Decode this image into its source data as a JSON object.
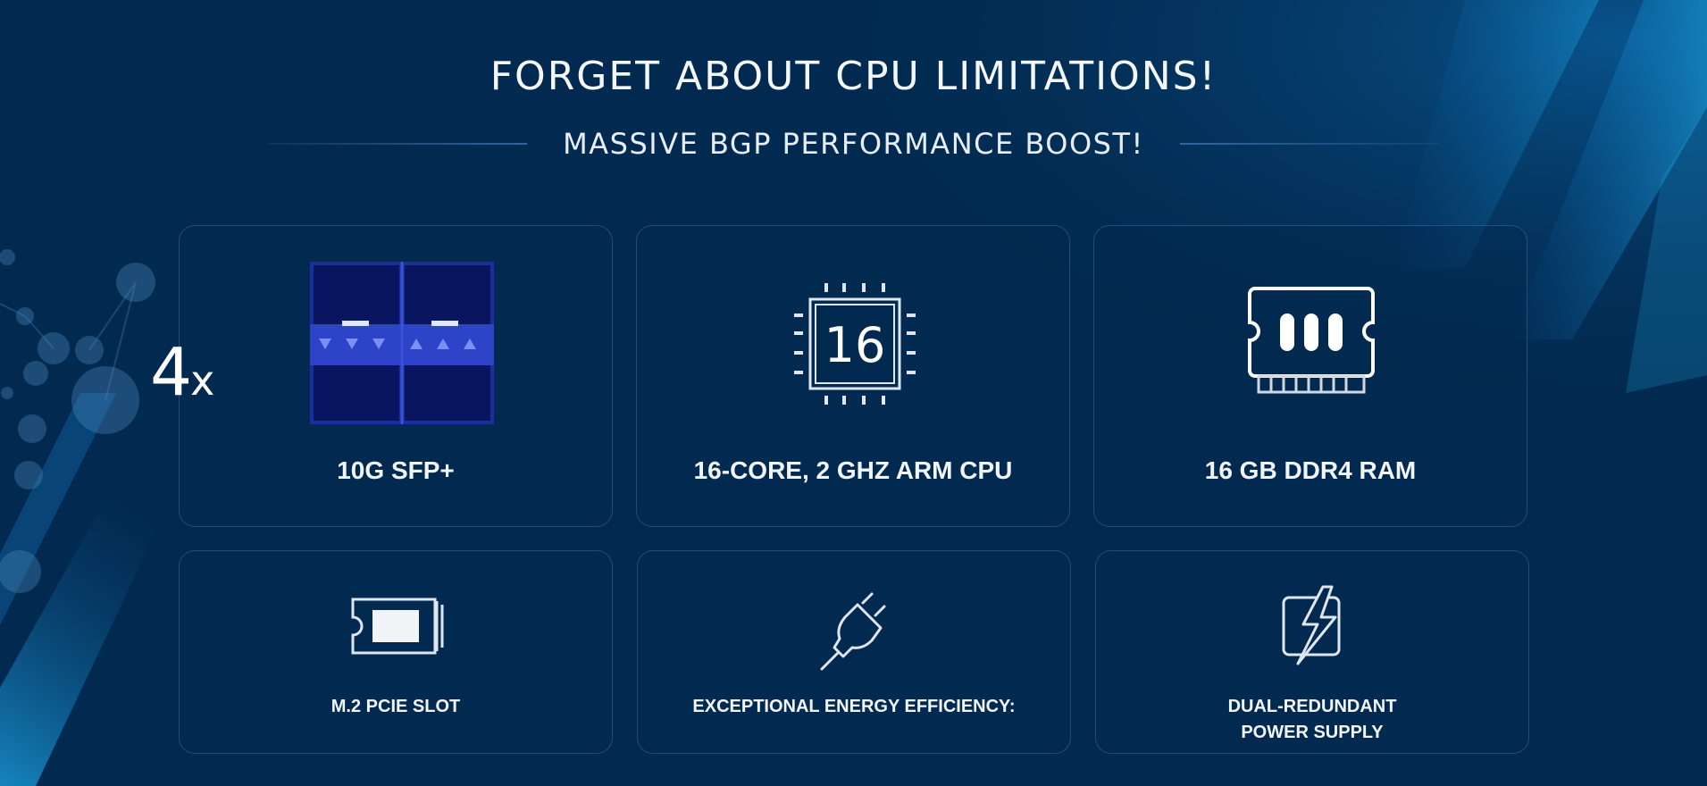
{
  "header": {
    "title": "FORGET ABOUT CPU LIMITATIONS!",
    "subtitle": "MASSIVE BGP PERFORMANCE BOOST!"
  },
  "features": {
    "sfp": {
      "multiplier": "4",
      "multiplier_suffix": "x",
      "label": "10G SFP+",
      "icon": "sfp-port-icon"
    },
    "cpu": {
      "chip_number": "16",
      "label": "16-CORE, 2 GHZ ARM CPU",
      "icon": "cpu-chip-icon"
    },
    "ram": {
      "label": "16 GB DDR4 RAM",
      "icon": "ram-module-icon"
    },
    "m2": {
      "label": "M.2 PCIE SLOT",
      "icon": "m2-slot-icon"
    },
    "energy": {
      "label": "EXCEPTIONAL ENERGY EFFICIENCY:",
      "icon": "power-plug-icon"
    },
    "psu": {
      "label_line1": "DUAL-REDUNDANT",
      "label_line2": "POWER SUPPLY",
      "icon": "power-supply-icon"
    }
  },
  "colors": {
    "background": "#022a50",
    "accent": "#1a9ad8",
    "sfp_blue": "#2a3fbf"
  }
}
